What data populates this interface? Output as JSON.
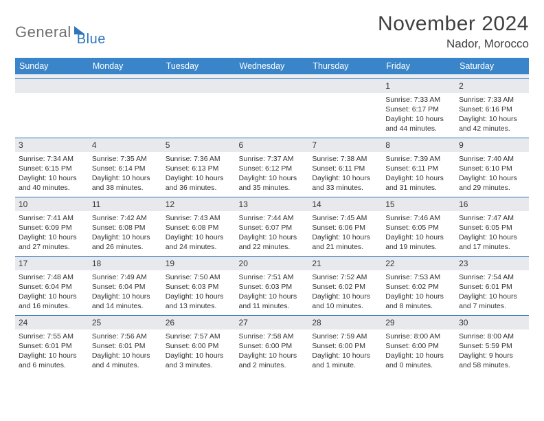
{
  "brand": {
    "text1": "General",
    "text2": "Blue"
  },
  "title": "November 2024",
  "location": "Nador, Morocco",
  "colors": {
    "header_bg": "#3a85c9",
    "rule": "#2d76bd",
    "daynum_bg": "#e7e9ec",
    "text": "#333333",
    "logo_gray": "#6f6f6f"
  },
  "daynames": [
    "Sunday",
    "Monday",
    "Tuesday",
    "Wednesday",
    "Thursday",
    "Friday",
    "Saturday"
  ],
  "weeks": [
    [
      null,
      null,
      null,
      null,
      null,
      {
        "n": "1",
        "sunrise": "Sunrise: 7:33 AM",
        "sunset": "Sunset: 6:17 PM",
        "daylight": "Daylight: 10 hours and 44 minutes."
      },
      {
        "n": "2",
        "sunrise": "Sunrise: 7:33 AM",
        "sunset": "Sunset: 6:16 PM",
        "daylight": "Daylight: 10 hours and 42 minutes."
      }
    ],
    [
      {
        "n": "3",
        "sunrise": "Sunrise: 7:34 AM",
        "sunset": "Sunset: 6:15 PM",
        "daylight": "Daylight: 10 hours and 40 minutes."
      },
      {
        "n": "4",
        "sunrise": "Sunrise: 7:35 AM",
        "sunset": "Sunset: 6:14 PM",
        "daylight": "Daylight: 10 hours and 38 minutes."
      },
      {
        "n": "5",
        "sunrise": "Sunrise: 7:36 AM",
        "sunset": "Sunset: 6:13 PM",
        "daylight": "Daylight: 10 hours and 36 minutes."
      },
      {
        "n": "6",
        "sunrise": "Sunrise: 7:37 AM",
        "sunset": "Sunset: 6:12 PM",
        "daylight": "Daylight: 10 hours and 35 minutes."
      },
      {
        "n": "7",
        "sunrise": "Sunrise: 7:38 AM",
        "sunset": "Sunset: 6:11 PM",
        "daylight": "Daylight: 10 hours and 33 minutes."
      },
      {
        "n": "8",
        "sunrise": "Sunrise: 7:39 AM",
        "sunset": "Sunset: 6:11 PM",
        "daylight": "Daylight: 10 hours and 31 minutes."
      },
      {
        "n": "9",
        "sunrise": "Sunrise: 7:40 AM",
        "sunset": "Sunset: 6:10 PM",
        "daylight": "Daylight: 10 hours and 29 minutes."
      }
    ],
    [
      {
        "n": "10",
        "sunrise": "Sunrise: 7:41 AM",
        "sunset": "Sunset: 6:09 PM",
        "daylight": "Daylight: 10 hours and 27 minutes."
      },
      {
        "n": "11",
        "sunrise": "Sunrise: 7:42 AM",
        "sunset": "Sunset: 6:08 PM",
        "daylight": "Daylight: 10 hours and 26 minutes."
      },
      {
        "n": "12",
        "sunrise": "Sunrise: 7:43 AM",
        "sunset": "Sunset: 6:08 PM",
        "daylight": "Daylight: 10 hours and 24 minutes."
      },
      {
        "n": "13",
        "sunrise": "Sunrise: 7:44 AM",
        "sunset": "Sunset: 6:07 PM",
        "daylight": "Daylight: 10 hours and 22 minutes."
      },
      {
        "n": "14",
        "sunrise": "Sunrise: 7:45 AM",
        "sunset": "Sunset: 6:06 PM",
        "daylight": "Daylight: 10 hours and 21 minutes."
      },
      {
        "n": "15",
        "sunrise": "Sunrise: 7:46 AM",
        "sunset": "Sunset: 6:05 PM",
        "daylight": "Daylight: 10 hours and 19 minutes."
      },
      {
        "n": "16",
        "sunrise": "Sunrise: 7:47 AM",
        "sunset": "Sunset: 6:05 PM",
        "daylight": "Daylight: 10 hours and 17 minutes."
      }
    ],
    [
      {
        "n": "17",
        "sunrise": "Sunrise: 7:48 AM",
        "sunset": "Sunset: 6:04 PM",
        "daylight": "Daylight: 10 hours and 16 minutes."
      },
      {
        "n": "18",
        "sunrise": "Sunrise: 7:49 AM",
        "sunset": "Sunset: 6:04 PM",
        "daylight": "Daylight: 10 hours and 14 minutes."
      },
      {
        "n": "19",
        "sunrise": "Sunrise: 7:50 AM",
        "sunset": "Sunset: 6:03 PM",
        "daylight": "Daylight: 10 hours and 13 minutes."
      },
      {
        "n": "20",
        "sunrise": "Sunrise: 7:51 AM",
        "sunset": "Sunset: 6:03 PM",
        "daylight": "Daylight: 10 hours and 11 minutes."
      },
      {
        "n": "21",
        "sunrise": "Sunrise: 7:52 AM",
        "sunset": "Sunset: 6:02 PM",
        "daylight": "Daylight: 10 hours and 10 minutes."
      },
      {
        "n": "22",
        "sunrise": "Sunrise: 7:53 AM",
        "sunset": "Sunset: 6:02 PM",
        "daylight": "Daylight: 10 hours and 8 minutes."
      },
      {
        "n": "23",
        "sunrise": "Sunrise: 7:54 AM",
        "sunset": "Sunset: 6:01 PM",
        "daylight": "Daylight: 10 hours and 7 minutes."
      }
    ],
    [
      {
        "n": "24",
        "sunrise": "Sunrise: 7:55 AM",
        "sunset": "Sunset: 6:01 PM",
        "daylight": "Daylight: 10 hours and 6 minutes."
      },
      {
        "n": "25",
        "sunrise": "Sunrise: 7:56 AM",
        "sunset": "Sunset: 6:01 PM",
        "daylight": "Daylight: 10 hours and 4 minutes."
      },
      {
        "n": "26",
        "sunrise": "Sunrise: 7:57 AM",
        "sunset": "Sunset: 6:00 PM",
        "daylight": "Daylight: 10 hours and 3 minutes."
      },
      {
        "n": "27",
        "sunrise": "Sunrise: 7:58 AM",
        "sunset": "Sunset: 6:00 PM",
        "daylight": "Daylight: 10 hours and 2 minutes."
      },
      {
        "n": "28",
        "sunrise": "Sunrise: 7:59 AM",
        "sunset": "Sunset: 6:00 PM",
        "daylight": "Daylight: 10 hours and 1 minute."
      },
      {
        "n": "29",
        "sunrise": "Sunrise: 8:00 AM",
        "sunset": "Sunset: 6:00 PM",
        "daylight": "Daylight: 10 hours and 0 minutes."
      },
      {
        "n": "30",
        "sunrise": "Sunrise: 8:00 AM",
        "sunset": "Sunset: 5:59 PM",
        "daylight": "Daylight: 9 hours and 58 minutes."
      }
    ]
  ]
}
